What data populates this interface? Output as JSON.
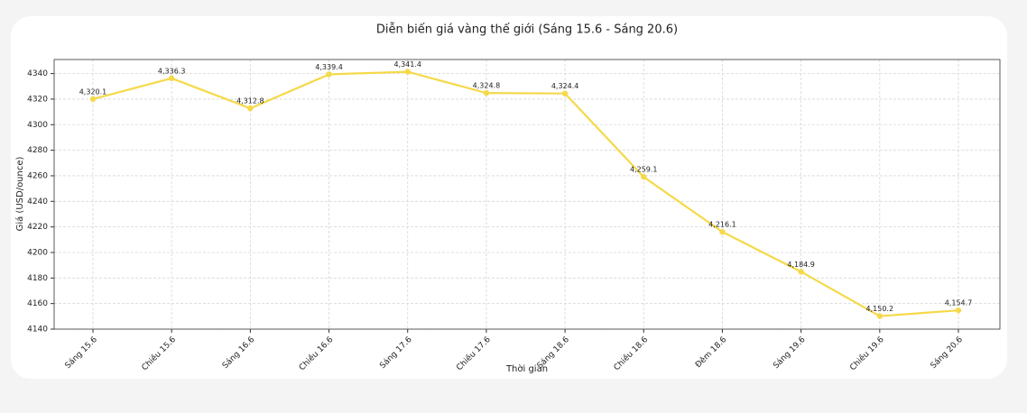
{
  "chart_data": {
    "type": "line",
    "title": "Diễn biến giá vàng thế giới (Sáng 15.6 - Sáng 20.6)",
    "x_label": "Thời gian",
    "y_label": "Giá (USD/ounce)",
    "categories": [
      "Sáng 15.6",
      "Chiều 15.6",
      "Sáng 16.6",
      "Chiều 16.6",
      "Sáng 17.6",
      "Chiều 17.6",
      "Sáng 18.6",
      "Chiều 18.6",
      "Đêm 18.6",
      "Sáng 19.6",
      "Chiều 19.6",
      "Sáng 20.6"
    ],
    "values": [
      4320.1,
      4336.3,
      4312.8,
      4339.4,
      4341.4,
      4324.8,
      4324.4,
      4259.1,
      4216.1,
      4184.9,
      4150.2,
      4154.7
    ],
    "value_labels": [
      "4,320.1",
      "4,336.3",
      "4,312.8",
      "4,339.4",
      "4,341.4",
      "4,324.8",
      "4,324.4",
      "4,259.1",
      "4,216.1",
      "4,184.9",
      "4,150.2",
      "4,154.7"
    ],
    "color": "#f5d94a",
    "ylim": [
      4140,
      4351
    ],
    "yticks": [
      4140,
      4160,
      4180,
      4200,
      4220,
      4240,
      4260,
      4280,
      4300,
      4320,
      4340
    ],
    "grid": true
  }
}
